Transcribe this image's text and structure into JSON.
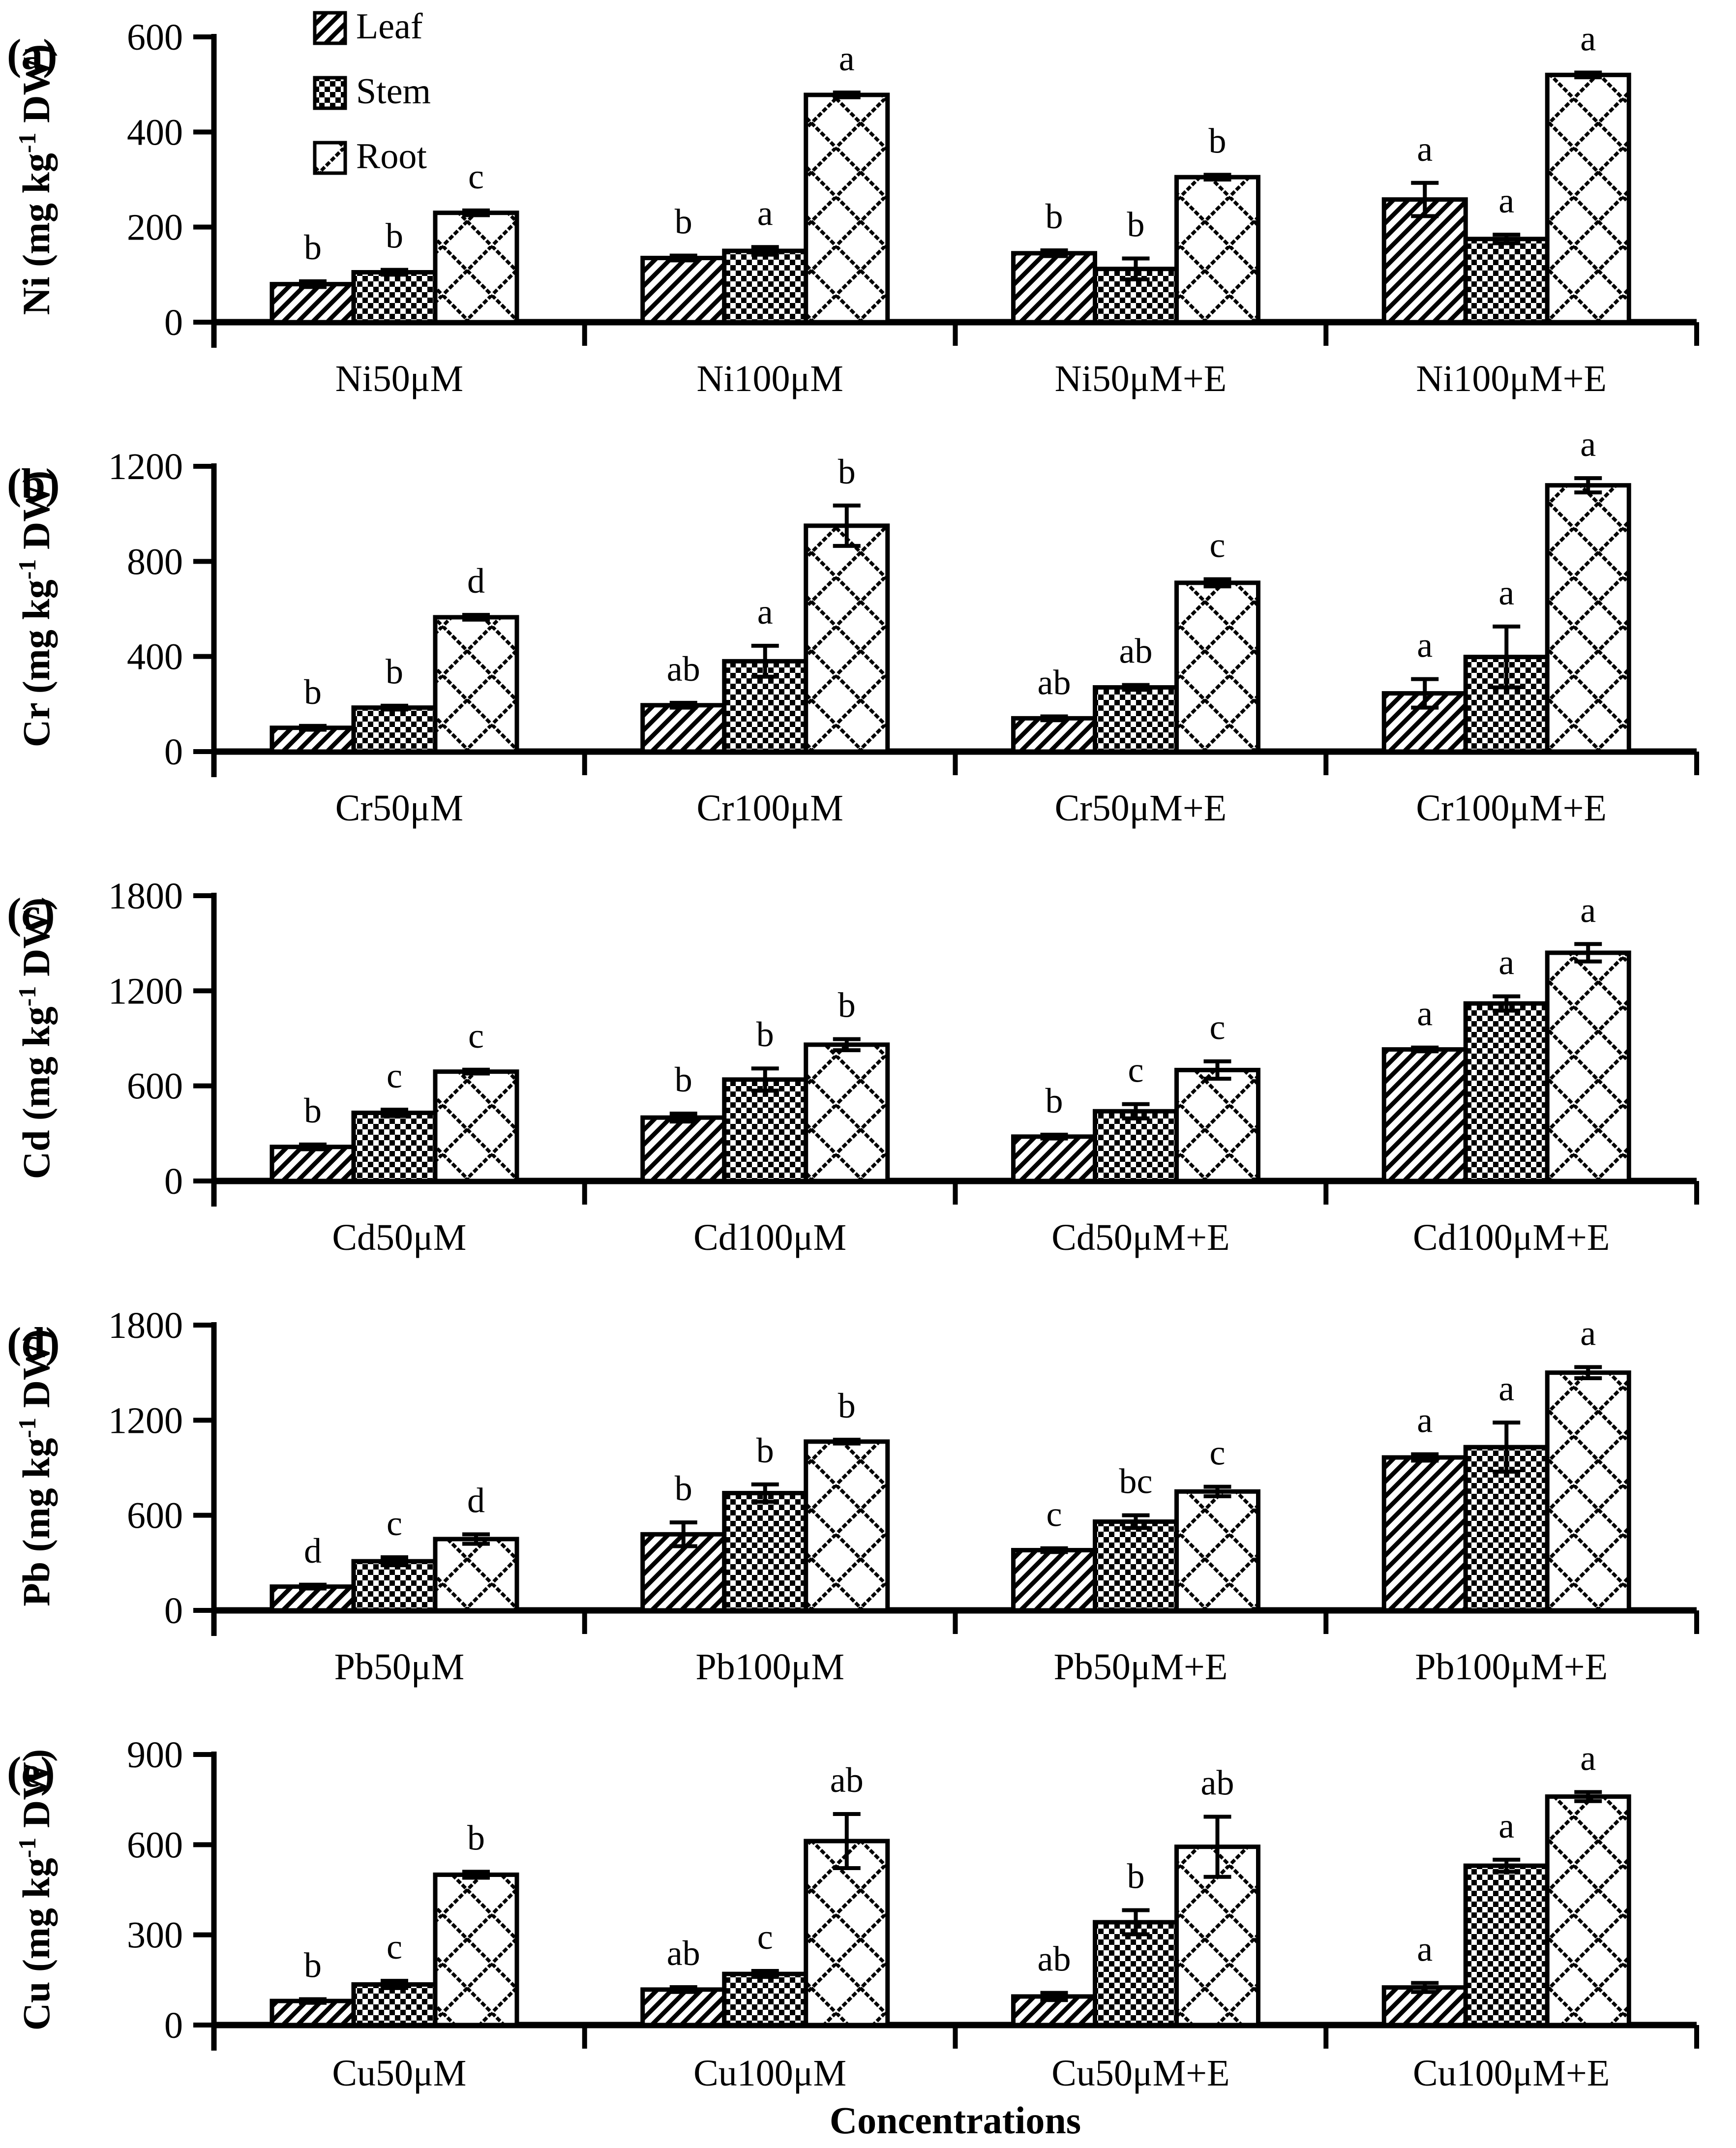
{
  "figure": {
    "background": "#ffffff",
    "ink": "#000000",
    "x_axis_title": "Concentrations",
    "legend": {
      "items": [
        {
          "label": "Leaf",
          "pattern": "diagonal-stripes",
          "icon": "diagonal-stripes-swatch-icon"
        },
        {
          "label": "Stem",
          "pattern": "checkerboard",
          "icon": "checkerboard-swatch-icon"
        },
        {
          "label": "Root",
          "pattern": "diamond-crosshatch",
          "icon": "diamond-crosshatch-swatch-icon"
        }
      ]
    }
  },
  "chart_data": [
    {
      "type": "bar",
      "panel_label": "(a)",
      "ylabel": "Ni (mg kg⁻¹ DW)",
      "ylabel_parts": {
        "pre": "Ni (mg kg",
        "sup": "-1",
        "post": " DW)"
      },
      "ylim": [
        0,
        600
      ],
      "yticks": [
        0,
        200,
        400,
        600
      ],
      "grid": false,
      "legend_position": "top-left-inside",
      "categories": [
        "Ni50μM",
        "Ni100μM",
        "Ni50μM+E",
        "Ni100μM+E"
      ],
      "series": [
        {
          "name": "Leaf",
          "values": [
            80,
            135,
            145,
            258
          ],
          "errors": [
            6,
            5,
            6,
            35
          ],
          "letters": [
            "b",
            "b",
            "b",
            "a"
          ]
        },
        {
          "name": "Stem",
          "values": [
            105,
            150,
            112,
            175
          ],
          "errors": [
            5,
            8,
            22,
            9
          ],
          "letters": [
            "b",
            "a",
            "b",
            "a"
          ]
        },
        {
          "name": "Root",
          "values": [
            230,
            478,
            305,
            520
          ],
          "errors": [
            5,
            5,
            5,
            5
          ],
          "letters": [
            "c",
            "a",
            "b",
            "a"
          ]
        }
      ]
    },
    {
      "type": "bar",
      "panel_label": "(b)",
      "ylabel": "Cr (mg kg⁻¹ DW)",
      "ylabel_parts": {
        "pre": "Cr (mg kg",
        "sup": "-1",
        "post": " DW)"
      },
      "ylim": [
        0,
        1200
      ],
      "yticks": [
        0,
        400,
        800,
        1200
      ],
      "grid": false,
      "categories": [
        "Cr50μM",
        "Cr100μM",
        "Cr50μM+E",
        "Cr100μM+E"
      ],
      "series": [
        {
          "name": "Leaf",
          "values": [
            100,
            195,
            140,
            245
          ],
          "errors": [
            8,
            10,
            8,
            60
          ],
          "letters": [
            "b",
            "ab",
            "ab",
            "a"
          ]
        },
        {
          "name": "Stem",
          "values": [
            185,
            380,
            270,
            398
          ],
          "errors": [
            8,
            65,
            10,
            128
          ],
          "letters": [
            "b",
            "a",
            "ab",
            "a"
          ]
        },
        {
          "name": "Root",
          "values": [
            565,
            950,
            710,
            1120
          ],
          "errors": [
            10,
            85,
            15,
            30
          ],
          "letters": [
            "d",
            "b",
            "c",
            "a"
          ]
        }
      ]
    },
    {
      "type": "bar",
      "panel_label": "(c)",
      "ylabel": "Cd (mg kg⁻¹ DW)",
      "ylabel_parts": {
        "pre": "Cd (mg kg",
        "sup": "-1",
        "post": " DW)"
      },
      "ylim": [
        0,
        1800
      ],
      "yticks": [
        0,
        600,
        1200,
        1800
      ],
      "grid": false,
      "categories": [
        "Cd50μM",
        "Cd100μM",
        "Cd50μM+E",
        "Cd100μM+E"
      ],
      "series": [
        {
          "name": "Leaf",
          "values": [
            215,
            400,
            280,
            830
          ],
          "errors": [
            15,
            25,
            12,
            12
          ],
          "letters": [
            "b",
            "b",
            "b",
            "a"
          ]
        },
        {
          "name": "Stem",
          "values": [
            430,
            640,
            440,
            1120
          ],
          "errors": [
            20,
            70,
            45,
            45
          ],
          "letters": [
            "c",
            "b",
            "c",
            "a"
          ]
        },
        {
          "name": "Root",
          "values": [
            690,
            860,
            700,
            1440
          ],
          "errors": [
            12,
            35,
            55,
            55
          ],
          "letters": [
            "c",
            "b",
            "c",
            "a"
          ]
        }
      ]
    },
    {
      "type": "bar",
      "panel_label": "(d)",
      "ylabel": "Pb (mg kg⁻¹ DW)",
      "ylabel_parts": {
        "pre": "Pb (mg kg",
        "sup": "-1",
        "post": " DW)"
      },
      "ylim": [
        0,
        1800
      ],
      "yticks": [
        0,
        600,
        1200,
        1800
      ],
      "grid": false,
      "categories": [
        "Pb50μM",
        "Pb100μM",
        "Pb50μM+E",
        "Pb100μM+E"
      ],
      "series": [
        {
          "name": "Leaf",
          "values": [
            150,
            480,
            380,
            965
          ],
          "errors": [
            12,
            75,
            12,
            20
          ],
          "letters": [
            "d",
            "b",
            "c",
            "a"
          ]
        },
        {
          "name": "Stem",
          "values": [
            310,
            740,
            560,
            1030
          ],
          "errors": [
            25,
            55,
            40,
            155
          ],
          "letters": [
            "c",
            "b",
            "bc",
            "a"
          ]
        },
        {
          "name": "Root",
          "values": [
            450,
            1065,
            750,
            1500
          ],
          "errors": [
            30,
            12,
            30,
            35
          ],
          "letters": [
            "d",
            "b",
            "c",
            "a"
          ]
        }
      ]
    },
    {
      "type": "bar",
      "panel_label": "(e)",
      "ylabel": "Cu (mg kg⁻¹ DW)",
      "ylabel_parts": {
        "pre": "Cu (mg kg",
        "sup": "-1",
        "post": " DW)"
      },
      "ylim": [
        0,
        900
      ],
      "yticks": [
        0,
        300,
        600,
        900
      ],
      "grid": false,
      "categories": [
        "Cu50μM",
        "Cu100μM",
        "Cu50μM+E",
        "Cu100μM+E"
      ],
      "series": [
        {
          "name": "Leaf",
          "values": [
            80,
            118,
            95,
            125
          ],
          "errors": [
            6,
            8,
            12,
            15
          ],
          "letters": [
            "b",
            "ab",
            "ab",
            "a"
          ]
        },
        {
          "name": "Stem",
          "values": [
            135,
            170,
            342,
            530
          ],
          "errors": [
            12,
            10,
            40,
            20
          ],
          "letters": [
            "c",
            "c",
            "b",
            "a"
          ]
        },
        {
          "name": "Root",
          "values": [
            500,
            612,
            593,
            760
          ],
          "errors": [
            10,
            90,
            100,
            15
          ],
          "letters": [
            "b",
            "ab",
            "ab",
            "a"
          ]
        }
      ]
    }
  ]
}
